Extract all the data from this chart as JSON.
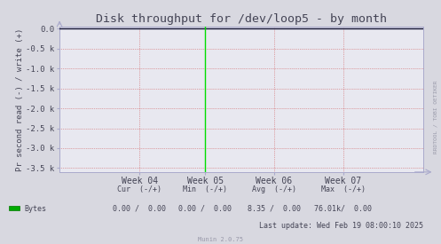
{
  "title": "Disk throughput for /dev/loop5 - by month",
  "ylabel": "Pr second read (-) / write (+)",
  "outer_bg": "#d8d8e0",
  "inner_bg": "#e8e8f0",
  "grid_color": "#cc4444",
  "border_color": "#aaaacc",
  "title_color": "#444455",
  "tick_color": "#444455",
  "ytick_vals": [
    0,
    -500,
    -1000,
    -1500,
    -2000,
    -2500,
    -3000,
    -3500
  ],
  "ytick_labels": [
    "0.0",
    "-0.5 k",
    "-1.0 k",
    "-1.5 k",
    "-2.0 k",
    "-2.5 k",
    "-3.0 k",
    "-3.5 k"
  ],
  "xtick_labels": [
    "Week 04",
    "Week 05",
    "Week 06",
    "Week 07"
  ],
  "xtick_positions": [
    0.22,
    0.4,
    0.59,
    0.78
  ],
  "vline_x": 0.4,
  "vline_color": "#00dd00",
  "legend_label": "Bytes",
  "legend_color": "#00aa00",
  "watermark": "RRDTOOL / TOBI OETIKER",
  "stats_header": "      Cur  (-/+)          Min  (-/+)          Avg  (-/+)          Max  (-/+)",
  "stats_row_label": "Bytes",
  "stats_cur": "0.00 /  0.00",
  "stats_min": "0.00 /  0.00",
  "stats_avg": "8.35 /  0.00",
  "stats_max": "76.01k/  0.00",
  "last_update": "Last update: Wed Feb 19 08:00:10 2025",
  "munin_version": "Munin 2.0.75"
}
